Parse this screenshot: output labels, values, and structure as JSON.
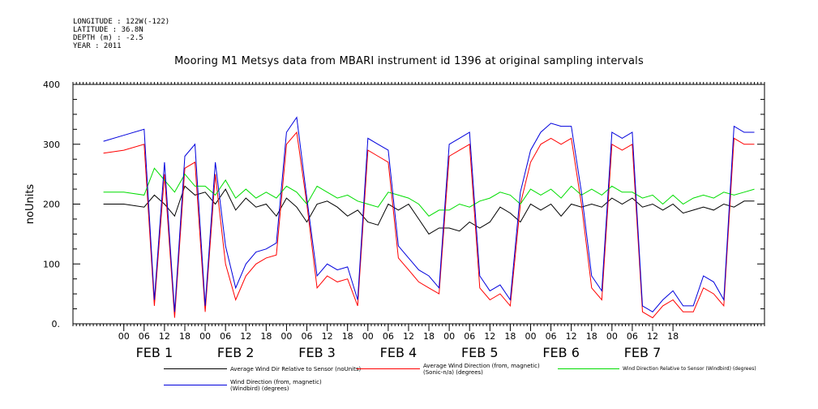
{
  "meta": {
    "longitude": "LONGITUDE : 122W(-122)",
    "latitude": "LATITUDE : 36.8N",
    "depth": "DEPTH (m) : -2.5",
    "year": "YEAR : 2011"
  },
  "chart_data": {
    "type": "line",
    "title": "Mooring M1 Metsys data from MBARI instrument id 1396 at original sampling intervals",
    "ylabel": "noUnits",
    "xlabel": "",
    "ylim": [
      0,
      400
    ],
    "yticks": [
      0,
      100,
      200,
      300,
      400
    ],
    "ytick_labels": [
      "0.",
      "100",
      "200",
      "300",
      "400"
    ],
    "xlim_hours": [
      -15,
      189
    ],
    "hour_ticks": [
      "00",
      "06",
      "12",
      "18"
    ],
    "day_labels": [
      "FEB  1",
      "FEB  2",
      "FEB  3",
      "FEB  4",
      "FEB  5",
      "FEB  6",
      "FEB  7"
    ],
    "grid": false,
    "legend_position": "bottom",
    "series": [
      {
        "name": "Average Wind Dir Relative to Sensor (noUnits)",
        "color": "#000000",
        "x_hours": [
          -6,
          0,
          6,
          9,
          12,
          15,
          18,
          21,
          24,
          27,
          30,
          33,
          36,
          39,
          42,
          45,
          48,
          51,
          54,
          57,
          60,
          63,
          66,
          69,
          72,
          75,
          78,
          81,
          84,
          87,
          90,
          93,
          96,
          99,
          102,
          105,
          108,
          111,
          114,
          117,
          120,
          123,
          126,
          129,
          132,
          135,
          138,
          141,
          144,
          147,
          150,
          153,
          156,
          159,
          162,
          165,
          168,
          171,
          174,
          177,
          180,
          183,
          186
        ],
        "values": [
          200,
          200,
          195,
          215,
          200,
          180,
          230,
          215,
          220,
          200,
          225,
          190,
          210,
          195,
          200,
          180,
          210,
          195,
          170,
          200,
          205,
          195,
          180,
          190,
          170,
          165,
          200,
          190,
          200,
          175,
          150,
          160,
          160,
          155,
          170,
          160,
          170,
          195,
          185,
          170,
          200,
          190,
          200,
          180,
          200,
          195,
          200,
          195,
          210,
          200,
          210,
          195,
          200,
          190,
          200,
          185,
          190,
          195,
          190,
          200,
          195,
          205,
          205
        ]
      },
      {
        "name": "Average Wind Direction (from, magnetic) (Sonic-n/a) (degrees)",
        "color": "#ff0000",
        "x_hours": [
          -6,
          0,
          6,
          9,
          12,
          15,
          18,
          21,
          24,
          27,
          30,
          33,
          36,
          39,
          42,
          45,
          48,
          51,
          54,
          57,
          60,
          63,
          66,
          69,
          72,
          75,
          78,
          81,
          84,
          87,
          90,
          93,
          96,
          99,
          102,
          105,
          108,
          111,
          114,
          117,
          120,
          123,
          126,
          129,
          132,
          135,
          138,
          141,
          144,
          147,
          150,
          153,
          156,
          159,
          162,
          165,
          168,
          171,
          174,
          177,
          180,
          183,
          186
        ],
        "values": [
          285,
          290,
          300,
          30,
          250,
          10,
          260,
          270,
          20,
          250,
          100,
          40,
          80,
          100,
          110,
          115,
          300,
          320,
          200,
          60,
          80,
          70,
          75,
          30,
          290,
          280,
          270,
          110,
          90,
          70,
          60,
          50,
          280,
          290,
          300,
          60,
          40,
          50,
          30,
          200,
          270,
          300,
          310,
          300,
          310,
          200,
          60,
          40,
          300,
          290,
          300,
          20,
          10,
          30,
          40,
          20,
          20,
          60,
          50,
          30,
          310,
          300,
          300
        ]
      },
      {
        "name": "Wind Direction Relative to Sensor (Windbird) (degrees)",
        "color": "#00dd00",
        "x_hours": [
          -6,
          0,
          6,
          9,
          12,
          15,
          18,
          21,
          24,
          27,
          30,
          33,
          36,
          39,
          42,
          45,
          48,
          51,
          54,
          57,
          60,
          63,
          66,
          69,
          72,
          75,
          78,
          81,
          84,
          87,
          90,
          93,
          96,
          99,
          102,
          105,
          108,
          111,
          114,
          117,
          120,
          123,
          126,
          129,
          132,
          135,
          138,
          141,
          144,
          147,
          150,
          153,
          156,
          159,
          162,
          165,
          168,
          171,
          174,
          177,
          180,
          183,
          186
        ],
        "values": [
          220,
          220,
          215,
          260,
          240,
          220,
          250,
          230,
          230,
          215,
          240,
          210,
          225,
          210,
          220,
          210,
          230,
          220,
          200,
          230,
          220,
          210,
          215,
          205,
          200,
          195,
          220,
          215,
          210,
          200,
          180,
          190,
          190,
          200,
          195,
          205,
          210,
          220,
          215,
          200,
          225,
          215,
          225,
          210,
          230,
          215,
          225,
          215,
          230,
          220,
          220,
          210,
          215,
          200,
          215,
          200,
          210,
          215,
          210,
          220,
          215,
          220,
          225
        ]
      },
      {
        "name": "Wind Direction (from, magnetic) (Windbird) (degrees)",
        "color": "#0000dd",
        "x_hours": [
          -6,
          0,
          6,
          9,
          12,
          15,
          18,
          21,
          24,
          27,
          30,
          33,
          36,
          39,
          42,
          45,
          48,
          51,
          54,
          57,
          60,
          63,
          66,
          69,
          72,
          75,
          78,
          81,
          84,
          87,
          90,
          93,
          96,
          99,
          102,
          105,
          108,
          111,
          114,
          117,
          120,
          123,
          126,
          129,
          132,
          135,
          138,
          141,
          144,
          147,
          150,
          153,
          156,
          159,
          162,
          165,
          168,
          171,
          174,
          177,
          180,
          183,
          186
        ],
        "values": [
          305,
          315,
          325,
          40,
          270,
          20,
          280,
          300,
          30,
          270,
          130,
          60,
          100,
          120,
          125,
          135,
          320,
          345,
          210,
          80,
          100,
          90,
          95,
          40,
          310,
          300,
          290,
          130,
          110,
          90,
          80,
          60,
          300,
          310,
          320,
          80,
          55,
          65,
          40,
          220,
          290,
          320,
          335,
          330,
          330,
          220,
          80,
          55,
          320,
          310,
          320,
          30,
          20,
          40,
          55,
          30,
          30,
          80,
          70,
          40,
          330,
          320,
          320
        ]
      }
    ]
  }
}
